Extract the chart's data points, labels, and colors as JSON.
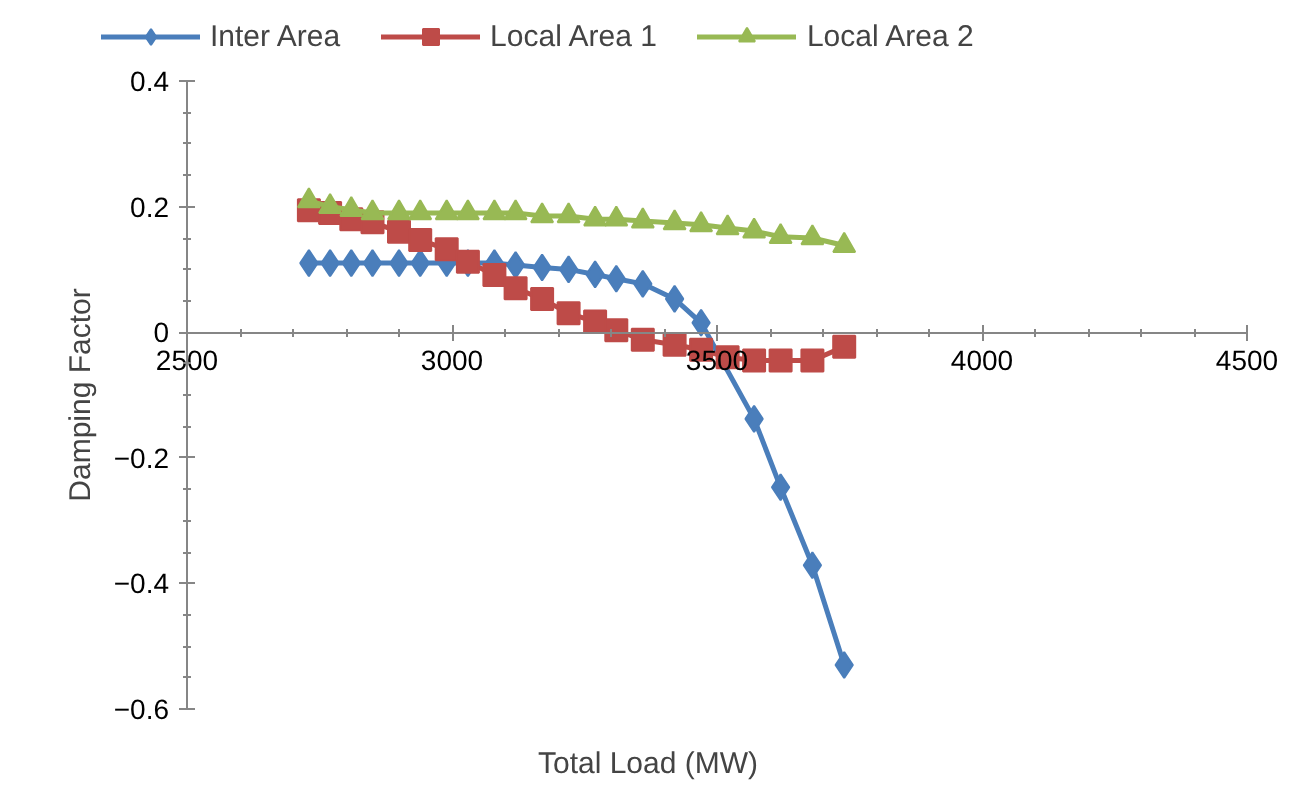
{
  "chart_data": {
    "type": "line",
    "xlabel": "Total Load (MW)",
    "ylabel": "Damping Factor",
    "x": [
      2730,
      2770,
      2810,
      2850,
      2900,
      2940,
      2990,
      3030,
      3080,
      3120,
      3170,
      3220,
      3270,
      3310,
      3360,
      3420,
      3470,
      3520,
      3570,
      3620,
      3680,
      3740
    ],
    "series": [
      {
        "name": "Inter Area",
        "color": "#4a7ebb",
        "marker": "diamond",
        "values": [
          0.11,
          0.11,
          0.11,
          0.11,
          0.11,
          0.11,
          0.11,
          0.11,
          0.11,
          0.107,
          0.103,
          0.1,
          0.092,
          0.085,
          0.077,
          0.053,
          0.015,
          null,
          -0.138,
          -0.247,
          -0.371,
          -0.53
        ]
      },
      {
        "name": "Local Area 1",
        "color": "#be4b48",
        "marker": "square",
        "values": [
          0.194,
          0.19,
          0.18,
          0.175,
          0.16,
          0.147,
          0.132,
          0.112,
          0.091,
          0.07,
          0.053,
          0.03,
          0.017,
          0.003,
          -0.012,
          -0.02,
          -0.028,
          -0.04,
          -0.045,
          -0.045,
          -0.045,
          -0.023
        ]
      },
      {
        "name": "Local Area 2",
        "color": "#98b954",
        "marker": "triangle",
        "values": [
          0.209,
          0.2,
          0.195,
          0.19,
          0.19,
          0.19,
          0.19,
          0.19,
          0.19,
          0.19,
          0.185,
          0.185,
          0.18,
          0.18,
          0.177,
          0.174,
          0.171,
          0.166,
          0.161,
          0.152,
          0.15,
          0.138
        ]
      }
    ],
    "xlim": [
      2500,
      4500
    ],
    "xticks": [
      2500,
      3000,
      3500,
      4000,
      4500
    ],
    "ylim": [
      -0.6,
      0.4
    ],
    "yticks": [
      -0.6,
      -0.4,
      -0.2,
      0,
      0.2,
      0.4
    ],
    "grid": false,
    "legend": "top",
    "line_style": "solid"
  }
}
